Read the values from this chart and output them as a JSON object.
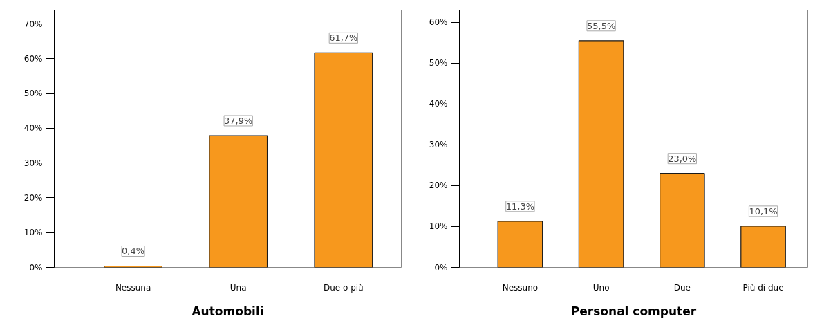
{
  "chart_data": [
    {
      "type": "bar",
      "xlabel": "Automobili",
      "categories": [
        "Nessuna",
        "Una",
        "Due o più"
      ],
      "values": [
        0.4,
        37.9,
        61.7
      ],
      "color": "#f7981d",
      "value_labels": [
        "0,4%",
        "37,9%",
        "61,7%"
      ],
      "ylim": [
        0,
        74
      ],
      "yticks": [
        {
          "value": 0,
          "label": "0%"
        },
        {
          "value": 10,
          "label": "10%"
        },
        {
          "value": 20,
          "label": "20%"
        },
        {
          "value": 30,
          "label": "30%"
        },
        {
          "value": 40,
          "label": "40%"
        },
        {
          "value": 50,
          "label": "50%"
        },
        {
          "value": 60,
          "label": "60%"
        },
        {
          "value": 70,
          "label": "70%"
        }
      ],
      "grid": false
    },
    {
      "type": "bar",
      "xlabel": "Personal computer",
      "categories": [
        "Nessuno",
        "Uno",
        "Due",
        "Più di due"
      ],
      "values": [
        11.3,
        55.5,
        23.0,
        10.1
      ],
      "color": "#f7981d",
      "value_labels": [
        "11,3%",
        "55,5%",
        "23,0%",
        "10,1%"
      ],
      "ylim": [
        0,
        63
      ],
      "yticks": [
        {
          "value": 0,
          "label": "0%"
        },
        {
          "value": 10,
          "label": "10%"
        },
        {
          "value": 20,
          "label": "20%"
        },
        {
          "value": 30,
          "label": "30%"
        },
        {
          "value": 40,
          "label": "40%"
        },
        {
          "value": 50,
          "label": "50%"
        },
        {
          "value": 60,
          "label": "60%"
        }
      ],
      "grid": false
    }
  ]
}
